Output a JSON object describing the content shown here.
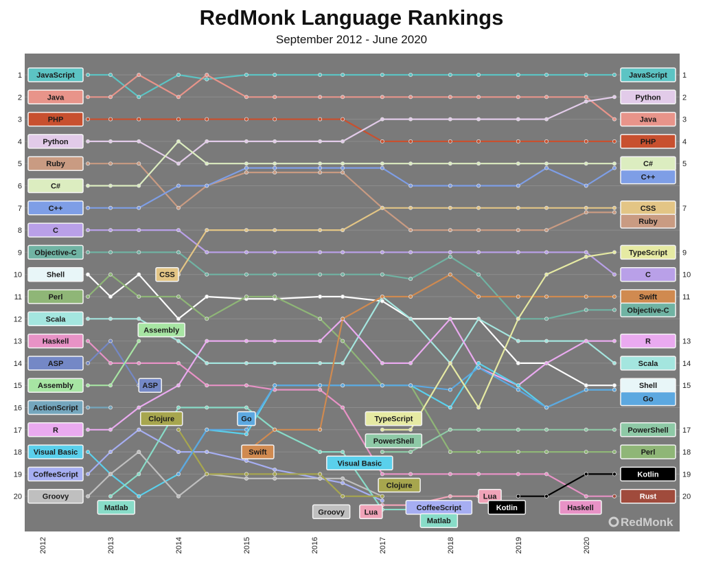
{
  "title": "RedMonk Language Rankings",
  "subtitle": "September 2012 - June 2020",
  "brand": "RedMonk",
  "chart_data": {
    "type": "line",
    "title": "RedMonk Language Rankings",
    "subtitle": "September 2012 - June 2020",
    "background": "#7a7a7a",
    "x": [
      "2012-09",
      "2013-01",
      "2013-06",
      "2014-01",
      "2014-06",
      "2015-01",
      "2015-06",
      "2016-02",
      "2016-06",
      "2017-01",
      "2017-06",
      "2018-01",
      "2018-06",
      "2019-01",
      "2019-06",
      "2020-01",
      "2020-06"
    ],
    "x_ticks": [
      "2012",
      "2013",
      "2014",
      "2015",
      "2016",
      "2017",
      "2018",
      "2019",
      "2020"
    ],
    "y_ticks": [
      1,
      2,
      3,
      4,
      5,
      6,
      7,
      8,
      9,
      10,
      11,
      12,
      13,
      14,
      15,
      16,
      17,
      18,
      19,
      20
    ],
    "y_reversed": true,
    "ylim": [
      1,
      20
    ],
    "grid": true,
    "series": [
      {
        "name": "JavaScript",
        "color": "#5cc4c4",
        "values": [
          1,
          1,
          2,
          1,
          1.2,
          1,
          1,
          1,
          1,
          1,
          1,
          1,
          1,
          1,
          1,
          1,
          1
        ]
      },
      {
        "name": "Java",
        "color": "#e8948a",
        "values": [
          2,
          2,
          1,
          2,
          1,
          2,
          2,
          2,
          2,
          2,
          2,
          2,
          2,
          2,
          2,
          2,
          3
        ]
      },
      {
        "name": "PHP",
        "color": "#c8502f",
        "values": [
          3,
          3,
          3,
          3,
          3,
          3,
          3,
          3,
          3,
          4,
          4,
          4,
          4,
          4,
          4,
          4,
          4
        ]
      },
      {
        "name": "Python",
        "color": "#e2cbe9",
        "values": [
          4,
          4,
          4,
          5,
          4,
          4,
          4,
          4,
          4,
          3,
          3,
          3,
          3,
          3,
          3,
          2.2,
          2
        ]
      },
      {
        "name": "Ruby",
        "color": "#c99b82",
        "values": [
          5,
          5,
          5,
          7,
          6,
          5.4,
          5.4,
          5.4,
          5.4,
          7,
          8,
          8,
          8,
          8,
          8,
          7.2,
          7.2
        ]
      },
      {
        "name": "C#",
        "color": "#dcedc0",
        "values": [
          6,
          6,
          6,
          4,
          5,
          5,
          5,
          5,
          5,
          5,
          5,
          5,
          5,
          5,
          5,
          5,
          5
        ]
      },
      {
        "name": "C++",
        "color": "#7e9ee6",
        "values": [
          7,
          7,
          7,
          6,
          6,
          5.2,
          5.2,
          5.2,
          5.2,
          5.2,
          6,
          6,
          6,
          6,
          5.2,
          6,
          5.2
        ]
      },
      {
        "name": "C",
        "color": "#b9a0e8",
        "values": [
          8,
          8,
          8,
          8,
          9,
          9,
          9,
          9,
          9,
          9,
          9,
          9,
          9,
          9,
          9,
          9,
          10
        ]
      },
      {
        "name": "Objective-C",
        "color": "#70b3a3",
        "values": [
          9,
          9,
          9,
          9,
          10,
          10,
          10,
          10,
          10,
          10,
          10.2,
          9.2,
          10,
          12,
          12,
          11.6,
          11.6
        ]
      },
      {
        "name": "Shell",
        "color": "#ffffff",
        "values": [
          10,
          11,
          10,
          12,
          11,
          11.1,
          11.1,
          11,
          11,
          11.2,
          12,
          12,
          12,
          14,
          14,
          15,
          15
        ]
      },
      {
        "name": "Perl",
        "color": "#8fb677",
        "values": [
          11,
          10,
          11,
          11,
          12,
          11,
          11,
          12,
          13,
          15,
          15,
          18,
          18,
          18,
          18,
          18,
          18
        ]
      },
      {
        "name": "Scala",
        "color": "#a4e6df",
        "values": [
          12,
          12,
          12,
          13,
          14,
          14,
          14,
          14,
          14,
          11,
          12,
          14,
          12,
          13,
          13,
          13,
          14
        ]
      },
      {
        "name": "Haskell",
        "color": "#e892c6",
        "values": [
          13,
          14,
          14,
          14,
          15,
          15,
          15.2,
          15.2,
          16,
          19,
          19,
          19,
          19,
          19,
          19,
          20,
          20
        ]
      },
      {
        "name": "ASP",
        "color": "#7488c6",
        "values": [
          14,
          13,
          15,
          null,
          null,
          null,
          null,
          null,
          null,
          null,
          null,
          null,
          null,
          null,
          null,
          null,
          null
        ]
      },
      {
        "name": "Assembly",
        "color": "#a7e5a3",
        "values": [
          15,
          15,
          13,
          null,
          null,
          null,
          null,
          null,
          null,
          null,
          null,
          null,
          null,
          null,
          null,
          null,
          null
        ]
      },
      {
        "name": "ActionScript",
        "color": "#74a6bd",
        "values": [
          16,
          16,
          null,
          null,
          null,
          null,
          null,
          null,
          null,
          null,
          null,
          null,
          null,
          null,
          null,
          null,
          null
        ]
      },
      {
        "name": "R",
        "color": "#eaaaf0",
        "values": [
          17,
          17,
          16,
          15,
          13,
          13,
          13,
          13,
          12,
          14,
          14,
          12,
          14.2,
          15,
          14,
          13,
          13
        ]
      },
      {
        "name": "Visual Basic",
        "color": "#5ad0ec",
        "values": [
          18,
          19,
          20,
          19,
          17,
          17.2,
          15,
          15,
          15,
          15,
          15,
          16,
          14,
          15,
          16,
          15.2,
          15.2
        ]
      },
      {
        "name": "CoffeeScript",
        "color": "#a6aef2",
        "values": [
          19,
          18,
          17,
          18,
          18,
          18.4,
          18.8,
          19.2,
          19.4,
          20.2,
          null,
          null,
          null,
          null,
          null,
          null,
          null
        ]
      },
      {
        "name": "Groovy",
        "color": "#bfbfbf",
        "values": [
          20,
          19,
          18,
          20,
          19,
          19.2,
          19.2,
          19.2,
          19.2,
          20,
          null,
          null,
          null,
          null,
          null,
          null,
          null
        ]
      },
      {
        "name": "Matlab",
        "color": "#88dcc8",
        "values": [
          null,
          20,
          19,
          16,
          16,
          16,
          17,
          18,
          18,
          20.6,
          20.6,
          null,
          null,
          null,
          null,
          null,
          null
        ]
      },
      {
        "name": "CSS",
        "color": "#e3c585",
        "values": [
          null,
          null,
          null,
          10,
          8,
          8,
          8,
          8,
          8,
          7,
          7,
          7,
          7,
          7,
          7,
          7,
          7
        ]
      },
      {
        "name": "Clojure",
        "color": "#a7a64e",
        "values": [
          null,
          null,
          null,
          17,
          19,
          19,
          19,
          19,
          20,
          20,
          null,
          null,
          null,
          null,
          null,
          null,
          null
        ]
      },
      {
        "name": "Go",
        "color": "#5ca8e0",
        "values": [
          null,
          null,
          null,
          19,
          17,
          17,
          15,
          15,
          15,
          15,
          15,
          15.2,
          14.2,
          15.2,
          16,
          15.2,
          15.2
        ]
      },
      {
        "name": "Swift",
        "color": "#d08a50",
        "values": [
          null,
          null,
          null,
          null,
          null,
          18,
          17,
          17,
          12,
          11,
          11,
          10,
          11,
          11,
          11,
          11,
          11
        ]
      },
      {
        "name": "TypeScript",
        "color": "#e6eaa3",
        "values": [
          null,
          null,
          null,
          null,
          null,
          null,
          null,
          null,
          null,
          17,
          17,
          14,
          16,
          12,
          10,
          9.2,
          9
        ]
      },
      {
        "name": "PowerShell",
        "color": "#8ec9a6",
        "values": [
          null,
          null,
          null,
          null,
          null,
          null,
          null,
          null,
          null,
          18,
          18,
          17,
          17,
          17,
          17,
          17,
          17
        ]
      },
      {
        "name": "Lua",
        "color": "#f0a3b8",
        "values": [
          null,
          null,
          null,
          null,
          null,
          null,
          null,
          null,
          null,
          20.4,
          20.4,
          20,
          20,
          null,
          null,
          null,
          null
        ]
      },
      {
        "name": "Kotlin",
        "color": "#000000",
        "values": [
          null,
          null,
          null,
          null,
          null,
          null,
          null,
          null,
          null,
          null,
          null,
          null,
          null,
          20,
          20,
          19,
          19
        ]
      },
      {
        "name": "Rust",
        "color": "#a04b3c",
        "values": [
          null,
          null,
          null,
          null,
          null,
          null,
          null,
          null,
          null,
          null,
          null,
          null,
          null,
          null,
          null,
          null,
          20
        ]
      }
    ],
    "left_labels": [
      {
        "rank": 1,
        "label": "JavaScript",
        "color": "#5cc4c4"
      },
      {
        "rank": 2,
        "label": "Java",
        "color": "#e8948a"
      },
      {
        "rank": 3,
        "label": "PHP",
        "color": "#c8502f"
      },
      {
        "rank": 4,
        "label": "Python",
        "color": "#e2cbe9"
      },
      {
        "rank": 5,
        "label": "Ruby",
        "color": "#c99b82"
      },
      {
        "rank": 6,
        "label": "C#",
        "color": "#dcedc0"
      },
      {
        "rank": 7,
        "label": "C++",
        "color": "#7e9ee6"
      },
      {
        "rank": 8,
        "label": "C",
        "color": "#b9a0e8"
      },
      {
        "rank": 9,
        "label": "Objective-C",
        "color": "#70b3a3"
      },
      {
        "rank": 10,
        "label": "Shell",
        "color": "#e8f6f8"
      },
      {
        "rank": 11,
        "label": "Perl",
        "color": "#8fb677"
      },
      {
        "rank": 12,
        "label": "Scala",
        "color": "#a4e6df"
      },
      {
        "rank": 13,
        "label": "Haskell",
        "color": "#e892c6"
      },
      {
        "rank": 14,
        "label": "ASP",
        "color": "#7488c6"
      },
      {
        "rank": 15,
        "label": "Assembly",
        "color": "#a7e5a3"
      },
      {
        "rank": 16,
        "label": "ActionScript",
        "color": "#74a6bd"
      },
      {
        "rank": 17,
        "label": "R",
        "color": "#eaaaf0"
      },
      {
        "rank": 18,
        "label": "Visual Basic",
        "color": "#5ad0ec"
      },
      {
        "rank": 19,
        "label": "CoffeeScript",
        "color": "#a6aef2"
      },
      {
        "rank": 20,
        "label": "Groovy",
        "color": "#bfbfbf"
      }
    ],
    "right_labels": [
      {
        "rank": 1,
        "label": "JavaScript",
        "color": "#5cc4c4",
        "rank_text": "1"
      },
      {
        "rank": 2,
        "label": "Python",
        "color": "#e2cbe9",
        "rank_text": "2"
      },
      {
        "rank": 3,
        "label": "Java",
        "color": "#e8948a",
        "rank_text": "3"
      },
      {
        "rank": 4,
        "label": "PHP",
        "color": "#c8502f",
        "rank_text": "4"
      },
      {
        "rank": 5,
        "label": "C#",
        "color": "#dcedc0",
        "rank_text": "5"
      },
      {
        "rank": 5.6,
        "label": "C++",
        "color": "#7e9ee6",
        "rank_text": ""
      },
      {
        "rank": 7,
        "label": "CSS",
        "color": "#e3c585",
        "rank_text": "7"
      },
      {
        "rank": 7.6,
        "label": "Ruby",
        "color": "#c99b82",
        "rank_text": ""
      },
      {
        "rank": 9,
        "label": "TypeScript",
        "color": "#e6eaa3",
        "rank_text": "9"
      },
      {
        "rank": 10,
        "label": "C",
        "color": "#b9a0e8",
        "rank_text": "10"
      },
      {
        "rank": 11,
        "label": "Swift",
        "color": "#d08a50",
        "rank_text": "11"
      },
      {
        "rank": 11.6,
        "label": "Objective-C",
        "color": "#70b3a3",
        "rank_text": ""
      },
      {
        "rank": 13,
        "label": "R",
        "color": "#eaaaf0",
        "rank_text": "13"
      },
      {
        "rank": 14,
        "label": "Scala",
        "color": "#a4e6df",
        "rank_text": "14"
      },
      {
        "rank": 15,
        "label": "Shell",
        "color": "#e8f6f8",
        "rank_text": "15"
      },
      {
        "rank": 15.6,
        "label": "Go",
        "color": "#5ca8e0",
        "rank_text": ""
      },
      {
        "rank": 17,
        "label": "PowerShell",
        "color": "#8ec9a6",
        "rank_text": "17"
      },
      {
        "rank": 18,
        "label": "Perl",
        "color": "#8fb677",
        "rank_text": "18"
      },
      {
        "rank": 19,
        "label": "Kotlin",
        "color": "#000000",
        "rank_text": "19"
      },
      {
        "rank": 20,
        "label": "Rust",
        "color": "#a04b3c",
        "rank_text": "20"
      }
    ],
    "annotations": [
      {
        "label": "CSS",
        "color": "#e3c585",
        "x": "2013-11",
        "rank": 10
      },
      {
        "label": "Assembly",
        "color": "#a7e5a3",
        "x": "2013-10",
        "rank": 12.5
      },
      {
        "label": "ASP",
        "color": "#7488c6",
        "x": "2013-08",
        "rank": 15
      },
      {
        "label": "Clojure",
        "color": "#a7a64e",
        "x": "2013-10",
        "rank": 16.5
      },
      {
        "label": "Go",
        "color": "#5ca8e0",
        "x": "2015-01",
        "rank": 16.5
      },
      {
        "label": "Swift",
        "color": "#d08a50",
        "x": "2015-03",
        "rank": 18
      },
      {
        "label": "Matlab",
        "color": "#88dcc8",
        "x": "2013-02",
        "rank": 20.5
      },
      {
        "label": "Visual Basic",
        "color": "#5ad0ec",
        "x": "2016-09",
        "rank": 18.5
      },
      {
        "label": "TypeScript",
        "color": "#e6eaa3",
        "x": "2017-03",
        "rank": 16.5
      },
      {
        "label": "PowerShell",
        "color": "#8ec9a6",
        "x": "2017-03",
        "rank": 17.5
      },
      {
        "label": "Clojure",
        "color": "#a7a64e",
        "x": "2017-04",
        "rank": 19.5
      },
      {
        "label": "Groovy",
        "color": "#bfbfbf",
        "x": "2016-04",
        "rank": 20.7
      },
      {
        "label": "Lua",
        "color": "#f0a3b8",
        "x": "2016-11",
        "rank": 20.7
      },
      {
        "label": "CoffeeScript",
        "color": "#a6aef2",
        "x": "2017-11",
        "rank": 20.5
      },
      {
        "label": "Matlab",
        "color": "#88dcc8",
        "x": "2017-11",
        "rank": 21.1
      },
      {
        "label": "Lua",
        "color": "#f0a3b8",
        "x": "2018-08",
        "rank": 20
      },
      {
        "label": "Kotlin",
        "color": "#000000",
        "x": "2018-11",
        "rank": 20.5
      },
      {
        "label": "Haskell",
        "color": "#e892c6",
        "x": "2019-12",
        "rank": 20.5
      }
    ]
  }
}
